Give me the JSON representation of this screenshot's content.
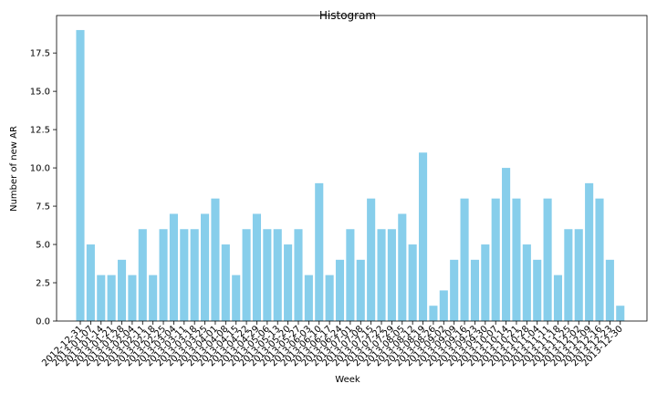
{
  "chart_data": {
    "type": "bar",
    "title": "Histogram",
    "xlabel": "Week",
    "ylabel": "Number of new AR",
    "ylim": [
      0,
      19.95
    ],
    "yticks": [
      0.0,
      2.5,
      5.0,
      7.5,
      10.0,
      12.5,
      15.0,
      17.5
    ],
    "ytick_labels": [
      "0.0",
      "2.5",
      "5.0",
      "7.5",
      "10.0",
      "12.5",
      "15.0",
      "17.5"
    ],
    "bar_color": "#87ceeb",
    "grid": false,
    "categories": [
      "2012-12-31",
      "2013-01-07",
      "2013-01-14",
      "2013-01-21",
      "2013-01-28",
      "2013-02-04",
      "2013-02-11",
      "2013-02-18",
      "2013-02-25",
      "2013-03-04",
      "2013-03-11",
      "2013-03-18",
      "2013-03-25",
      "2013-04-01",
      "2013-04-08",
      "2013-04-15",
      "2013-04-22",
      "2013-04-29",
      "2013-05-06",
      "2013-05-13",
      "2013-05-20",
      "2013-05-27",
      "2013-06-03",
      "2013-06-10",
      "2013-06-17",
      "2013-06-24",
      "2013-07-01",
      "2013-07-08",
      "2013-07-15",
      "2013-07-22",
      "2013-07-29",
      "2013-08-05",
      "2013-08-12",
      "2013-08-19",
      "2013-08-26",
      "2013-09-02",
      "2013-09-09",
      "2013-09-16",
      "2013-09-23",
      "2013-09-30",
      "2013-10-07",
      "2013-10-14",
      "2013-10-21",
      "2013-10-28",
      "2013-11-04",
      "2013-11-11",
      "2013-11-18",
      "2013-11-25",
      "2013-12-02",
      "2013-12-09",
      "2013-12-16",
      "2013-12-23",
      "2013-12-30"
    ],
    "values": [
      19,
      5,
      3,
      3,
      4,
      3,
      6,
      3,
      6,
      7,
      6,
      6,
      7,
      8,
      5,
      3,
      6,
      7,
      6,
      6,
      5,
      6,
      3,
      9,
      3,
      4,
      6,
      4,
      8,
      6,
      6,
      7,
      5,
      11,
      1,
      2,
      4,
      8,
      4,
      5,
      8,
      10,
      8,
      5,
      4,
      8,
      3,
      6,
      6,
      9,
      8,
      4,
      1
    ]
  }
}
